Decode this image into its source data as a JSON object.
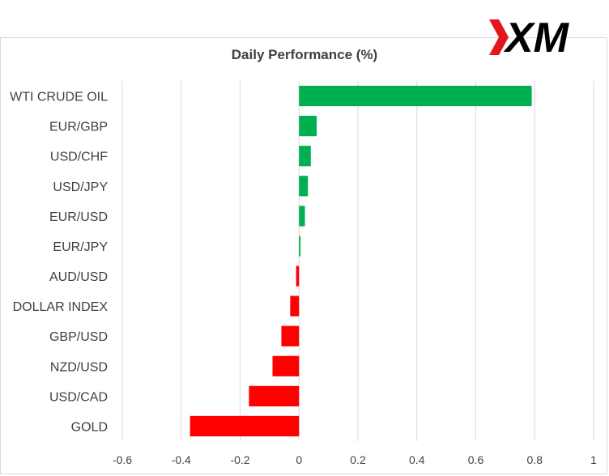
{
  "logo": {
    "text": "XM",
    "colors": {
      "accent": "#e3161b",
      "text": "#000000"
    }
  },
  "chart_data": {
    "type": "bar",
    "orientation": "horizontal",
    "title": "Daily Performance (%)",
    "categories": [
      "WTI CRUDE OIL",
      "EUR/GBP",
      "USD/CHF",
      "USD/JPY",
      "EUR/USD",
      "EUR/JPY",
      "AUD/USD",
      "DOLLAR INDEX",
      "GBP/USD",
      "NZD/USD",
      "USD/CAD",
      "GOLD"
    ],
    "values": [
      0.79,
      0.06,
      0.04,
      0.03,
      0.02,
      0.005,
      -0.01,
      -0.03,
      -0.06,
      -0.09,
      -0.17,
      -0.37
    ],
    "xlim": [
      -0.6,
      1
    ],
    "xticks": [
      -0.6,
      -0.4,
      -0.2,
      0,
      0.2,
      0.4,
      0.6,
      0.8,
      1
    ],
    "grid": "vertical",
    "colors": {
      "positive": "#00b050",
      "negative": "#ff0000",
      "grid": "#d9d9d9"
    }
  }
}
